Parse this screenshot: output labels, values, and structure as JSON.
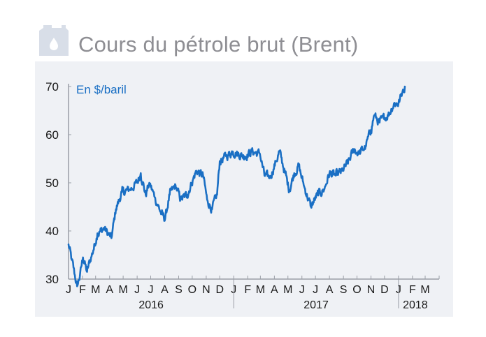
{
  "header": {
    "title": "Cours du pétrole brut (Brent)",
    "icon": "oil-canister-icon"
  },
  "colors": {
    "line": "#1a6fc4",
    "panel": "#eff1f5",
    "axis": "#9a9ea6",
    "text": "#1a1a1a",
    "unit": "#1a6fc4",
    "icon": "#d8dee8"
  },
  "chart_data": {
    "type": "line",
    "title": "",
    "unit_label": "En $/baril",
    "ylabel": "",
    "xlabel": "",
    "ylim": [
      30,
      70
    ],
    "yticks": [
      30,
      40,
      50,
      60,
      70
    ],
    "xlim": [
      "2016-01-01",
      "2018-03-31"
    ],
    "month_labels": [
      "J",
      "F",
      "M",
      "A",
      "M",
      "J",
      "J",
      "A",
      "S",
      "O",
      "N",
      "D",
      "J",
      "F",
      "M",
      "A",
      "M",
      "J",
      "J",
      "A",
      "S",
      "O",
      "N",
      "D",
      "J",
      "F",
      "M"
    ],
    "year_labels": [
      "2016",
      "2017",
      "2018"
    ],
    "grid": false,
    "series": [
      {
        "name": "",
        "x": [
          "2016-01-01",
          "2016-01-08",
          "2016-01-20",
          "2016-01-26",
          "2016-02-02",
          "2016-02-11",
          "2016-02-18",
          "2016-02-25",
          "2016-03-05",
          "2016-03-20",
          "2016-04-05",
          "2016-04-15",
          "2016-04-28",
          "2016-05-15",
          "2016-06-01",
          "2016-06-09",
          "2016-06-20",
          "2016-06-28",
          "2016-07-10",
          "2016-07-25",
          "2016-08-02",
          "2016-08-12",
          "2016-08-25",
          "2016-09-05",
          "2016-09-20",
          "2016-09-30",
          "2016-10-10",
          "2016-10-25",
          "2016-11-03",
          "2016-11-14",
          "2016-11-25",
          "2016-12-01",
          "2016-12-15",
          "2016-12-30",
          "2017-01-10",
          "2017-01-25",
          "2017-02-10",
          "2017-02-28",
          "2017-03-10",
          "2017-03-22",
          "2017-04-05",
          "2017-04-12",
          "2017-04-25",
          "2017-05-04",
          "2017-05-15",
          "2017-05-25",
          "2017-06-05",
          "2017-06-21",
          "2017-07-05",
          "2017-07-20",
          "2017-08-01",
          "2017-08-15",
          "2017-08-30",
          "2017-09-10",
          "2017-09-25",
          "2017-10-05",
          "2017-10-20",
          "2017-11-01",
          "2017-11-08",
          "2017-11-20",
          "2017-12-01",
          "2017-12-12",
          "2017-12-22",
          "2018-01-01",
          "2018-01-10",
          "2018-01-15"
        ],
        "values": [
          37.2,
          34.0,
          28.5,
          30.5,
          34.5,
          31.5,
          34.0,
          36.0,
          39.5,
          40.5,
          38.5,
          44.5,
          48.0,
          48.5,
          50.0,
          52.0,
          47.5,
          50.0,
          47.0,
          43.5,
          42.5,
          47.5,
          49.5,
          46.5,
          47.5,
          50.0,
          52.5,
          51.5,
          46.5,
          44.5,
          47.5,
          54.5,
          55.5,
          56.5,
          56.0,
          55.5,
          56.5,
          56.0,
          51.5,
          51.0,
          54.5,
          56.5,
          52.0,
          48.5,
          52.0,
          53.5,
          49.5,
          45.0,
          47.5,
          48.5,
          52.0,
          51.5,
          52.5,
          54.0,
          57.0,
          56.0,
          57.5,
          61.0,
          64.0,
          62.5,
          63.5,
          64.5,
          66.5,
          66.5,
          69.0,
          70.0
        ]
      }
    ]
  }
}
